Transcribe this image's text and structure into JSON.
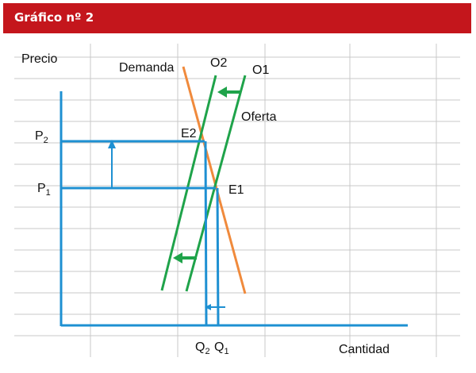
{
  "header": {
    "title": "Gráfico nº 2"
  },
  "colors": {
    "header_bg": "#c4161c",
    "axis": "#1e90d2",
    "demand": "#f08a3c",
    "supply": "#1fa34a",
    "arrow": "#1fa34a",
    "grid": "#c8c8c8"
  },
  "labels": {
    "price_axis": "Precio",
    "quantity_axis": "Cantidad",
    "demand": "Demanda",
    "supply_new": "O2",
    "supply_old": "O1",
    "supply": "Oferta",
    "eq_new": "E2",
    "eq_old": "E1",
    "p2_main": "P",
    "p2_sub": "2",
    "p1_main": "P",
    "p1_sub": "1",
    "q2_main": "Q",
    "q2_sub": "2",
    "q1_main": "Q",
    "q1_sub": "1"
  }
}
